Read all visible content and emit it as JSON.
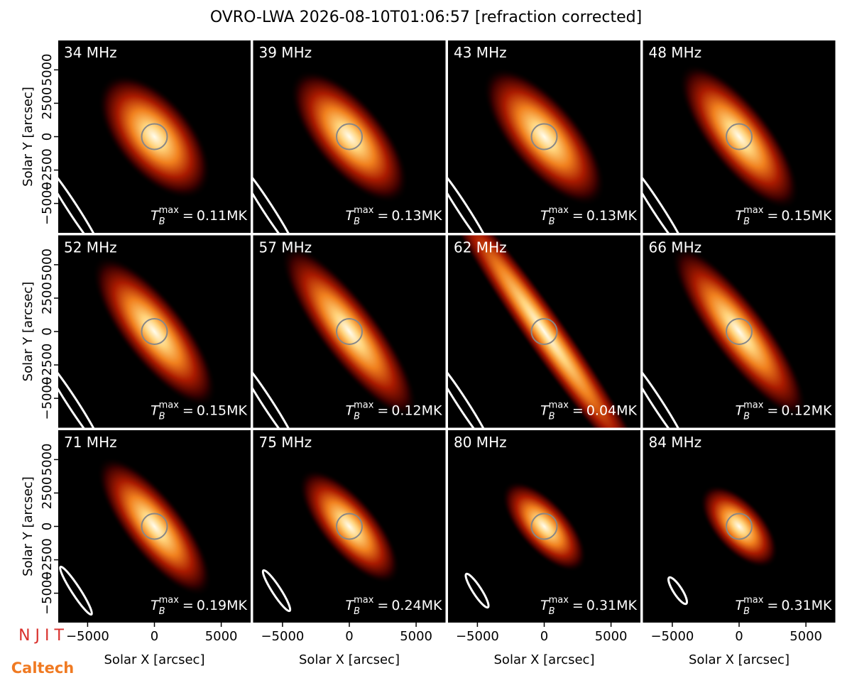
{
  "chart_data": {
    "type": "image_grid",
    "title": "OVRO-LWA 2026-08-10T01:06:57 [refraction corrected]",
    "xlabel": "Solar X [arcsec]",
    "ylabel": "Solar Y [arcsec]",
    "xlim": [
      -7200,
      7200
    ],
    "ylim": [
      -7200,
      7200
    ],
    "xticks": [
      {
        "value": -5000,
        "label": "−5000"
      },
      0,
      5000
    ],
    "yticks": [
      {
        "value": -5000,
        "label": "−5000"
      },
      {
        "value": -2500,
        "label": "−2500"
      },
      0,
      2500,
      5000
    ],
    "tb_symbol": {
      "base": "T",
      "sub": "B",
      "sup": "max",
      "equals": "="
    },
    "panels": [
      {
        "freq": "34 MHz",
        "tb": "0.11MK"
      },
      {
        "freq": "39 MHz",
        "tb": "0.13MK"
      },
      {
        "freq": "43 MHz",
        "tb": "0.13MK"
      },
      {
        "freq": "48 MHz",
        "tb": "0.15MK"
      },
      {
        "freq": "52 MHz",
        "tb": "0.15MK"
      },
      {
        "freq": "57 MHz",
        "tb": "0.12MK"
      },
      {
        "freq": "62 MHz",
        "tb": "0.04MK"
      },
      {
        "freq": "66 MHz",
        "tb": "0.12MK"
      },
      {
        "freq": "71 MHz",
        "tb": "0.19MK"
      },
      {
        "freq": "75 MHz",
        "tb": "0.24MK"
      },
      {
        "freq": "80 MHz",
        "tb": "0.31MK"
      },
      {
        "freq": "84 MHz",
        "tb": "0.31MK"
      }
    ],
    "logos": [
      "N J I T",
      "Caltech"
    ]
  }
}
